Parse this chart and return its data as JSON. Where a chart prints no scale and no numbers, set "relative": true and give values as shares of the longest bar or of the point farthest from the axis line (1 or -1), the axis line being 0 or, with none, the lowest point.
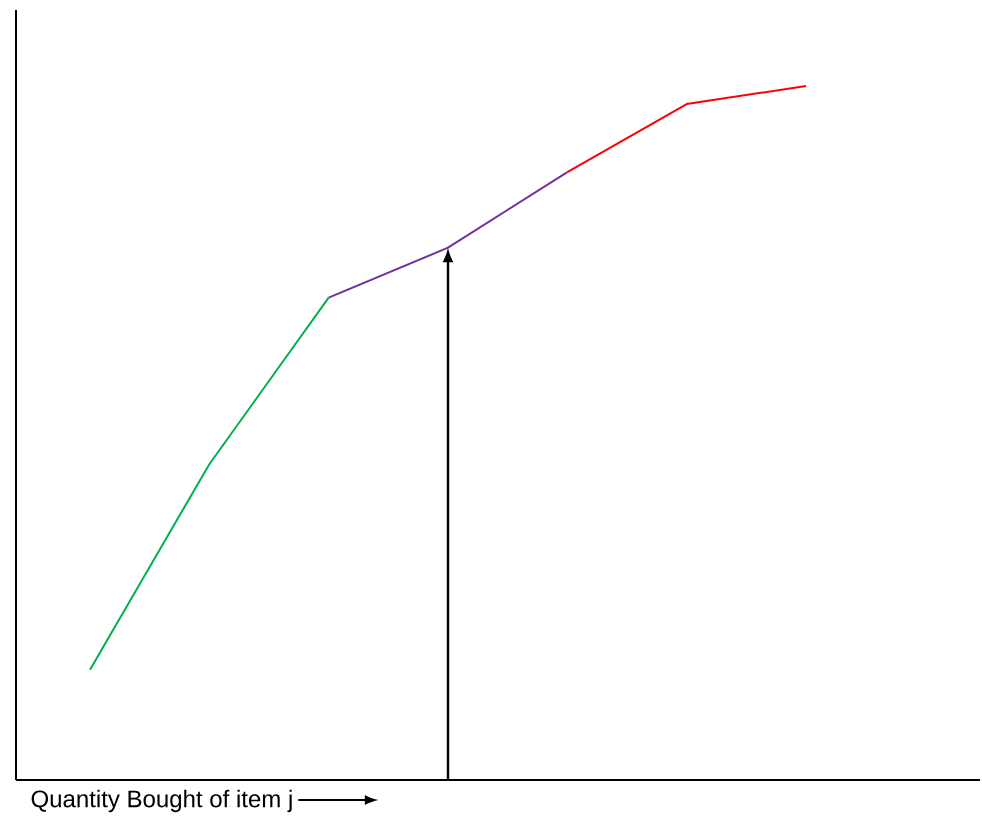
{
  "chart_data": {
    "type": "line",
    "relative": true,
    "xlabel": "Quantity Bought of item j",
    "categories": [
      null,
      null,
      null,
      null,
      null,
      null,
      null
    ],
    "series": [
      {
        "color": "#00b050",
        "values": [
          0.159,
          0.455,
          0.695,
          null,
          null,
          null,
          null
        ]
      },
      {
        "color": "#7030a0",
        "values": [
          null,
          null,
          0.695,
          0.767,
          0.876,
          null,
          null
        ]
      },
      {
        "color": "#ff0000",
        "values": [
          null,
          null,
          null,
          null,
          0.876,
          0.974,
          1
        ]
      }
    ]
  }
}
